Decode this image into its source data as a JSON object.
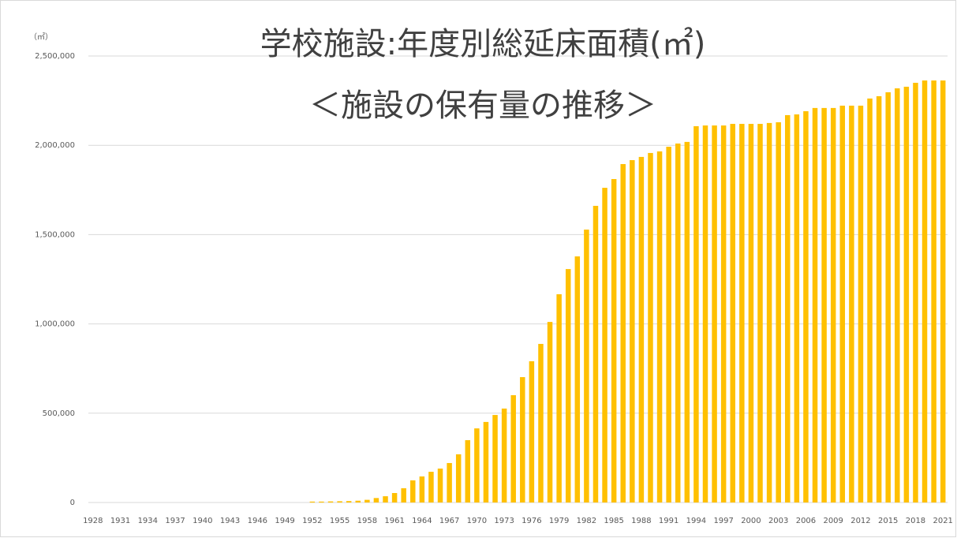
{
  "chart_data": {
    "type": "bar",
    "title": "学校施設:年度別総延床面積(㎡)",
    "subtitle": "＜施設の保有量の推移＞",
    "ylabel": "（㎡）",
    "color": "#FFC000",
    "grid": true,
    "ylim": [
      0,
      2500000
    ],
    "yticks": [
      {
        "value": 0,
        "label": "0"
      },
      {
        "value": 500000,
        "label": "500,000"
      },
      {
        "value": 1000000,
        "label": "1,000,000"
      },
      {
        "value": 1500000,
        "label": "1,500,000"
      },
      {
        "value": 2000000,
        "label": "2,000,000"
      },
      {
        "value": 2500000,
        "label": "2,500,000"
      }
    ],
    "categories": [
      "1928",
      null,
      null,
      "1931",
      null,
      null,
      "1934",
      null,
      null,
      "1937",
      null,
      null,
      "1940",
      null,
      null,
      "1943",
      null,
      null,
      "1946",
      null,
      null,
      "1949",
      null,
      null,
      "1952",
      null,
      null,
      "1955",
      null,
      null,
      "1958",
      null,
      null,
      "1961",
      null,
      null,
      "1964",
      null,
      null,
      "1967",
      null,
      null,
      "1970",
      null,
      null,
      "1973",
      null,
      null,
      "1976",
      null,
      null,
      "1979",
      null,
      null,
      "1982",
      null,
      null,
      "1985",
      null,
      null,
      "1988",
      null,
      null,
      "1991",
      null,
      null,
      "1994",
      null,
      null,
      "1997",
      null,
      null,
      "2000",
      null,
      null,
      "2003",
      null,
      null,
      "2006",
      null,
      null,
      "2009",
      null,
      null,
      "2012",
      null,
      null,
      "2015",
      null,
      null,
      "2018",
      null,
      null,
      "2021"
    ],
    "values": [
      0,
      0,
      0,
      0,
      0,
      0,
      0,
      0,
      0,
      0,
      0,
      0,
      0,
      0,
      0,
      0,
      0,
      0,
      0,
      0,
      0,
      0,
      0,
      0,
      5000,
      5000,
      6000,
      7000,
      8000,
      10000,
      15000,
      25000,
      35000,
      53000,
      80000,
      124000,
      146000,
      172000,
      190000,
      221000,
      270000,
      349000,
      415000,
      451000,
      490000,
      526000,
      601000,
      702000,
      791000,
      888000,
      1011000,
      1166000,
      1307000,
      1378000,
      1528000,
      1661000,
      1762000,
      1811000,
      1895000,
      1917000,
      1935000,
      1957000,
      1966000,
      1992000,
      2010000,
      2019000,
      2107000,
      2111000,
      2111000,
      2111000,
      2120000,
      2120000,
      2120000,
      2120000,
      2125000,
      2129000,
      2169000,
      2173000,
      2191000,
      2209000,
      2209000,
      2209000,
      2222000,
      2222000,
      2222000,
      2262000,
      2275000,
      2297000,
      2319000,
      2328000,
      2350000,
      2363000,
      2363000,
      2363000
    ]
  }
}
